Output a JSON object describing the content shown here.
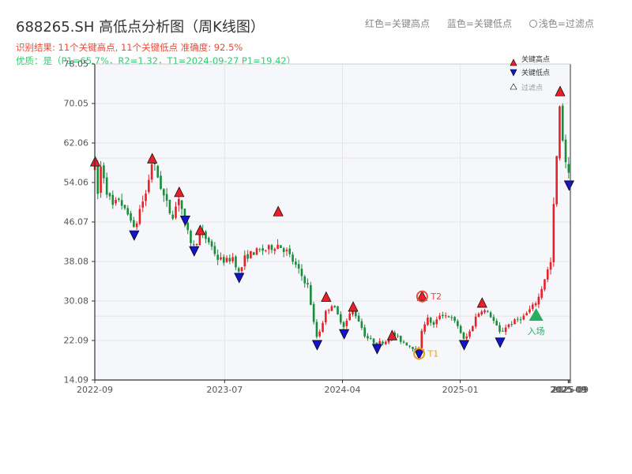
{
  "title": "688265.SH 高低点分析图（周K线图）",
  "legend_top": {
    "red": "红色=关键高点",
    "blue": "蓝色=关键低点",
    "light": "浅色=过滤点"
  },
  "result_line": "识别结果: 11个关键高点, 11个关键低点   准确度: 92.5%",
  "quality_line": "优质：是（P1=65.7%，R2=1.32，T1=2024-09-27 P1=19.42）",
  "legend": {
    "high": "关键高点",
    "low": "关键低点",
    "filtered": "过滤点"
  },
  "annotations": {
    "t1": "T1",
    "t2": "T2",
    "entry": "入场"
  },
  "colors": {
    "up": "#e8202a",
    "down": "#1a8c3c",
    "high_marker": "#e8202a",
    "low_marker": "#1414c8",
    "t1": "#f39c12",
    "t2": "#e74c3c",
    "entry": "#27ae60",
    "axis": "#333333",
    "grid": "#e6e6e6",
    "plot_bg": "#f5f7fa"
  },
  "chart_data": {
    "type": "candlestick",
    "x_ticks": [
      "2022-09",
      "2023-07",
      "2024-04",
      "2025-01",
      "2025-09",
      "2025-09",
      "2025-09"
    ],
    "y_ticks": [
      "14.09",
      "22.09",
      "30.08",
      "38.08",
      "46.07",
      "54.06",
      "62.06",
      "70.05",
      "78.05"
    ],
    "ylim": [
      14.09,
      78.05
    ],
    "xlim": [
      "2022-09-01",
      "2025-09-15"
    ],
    "grid": true,
    "legend_position": "top-right",
    "series_path": [
      [
        "2022-09-02",
        47
      ],
      [
        "2022-09-16",
        58
      ],
      [
        "2022-09-30",
        52
      ],
      [
        "2022-10-14",
        49
      ],
      [
        "2022-10-28",
        51
      ],
      [
        "2022-11-11",
        48
      ],
      [
        "2022-11-25",
        47
      ],
      [
        "2022-12-02",
        44
      ],
      [
        "2022-12-16",
        49
      ],
      [
        "2022-12-30",
        52
      ],
      [
        "2023-01-13",
        58.5
      ],
      [
        "2023-01-27",
        55
      ],
      [
        "2023-02-10",
        51
      ],
      [
        "2023-02-24",
        48
      ],
      [
        "2023-03-03",
        47.5
      ],
      [
        "2023-03-17",
        51.5
      ],
      [
        "2023-03-31",
        45
      ],
      [
        "2023-04-14",
        42
      ],
      [
        "2023-04-21",
        41
      ],
      [
        "2023-05-05",
        44
      ],
      [
        "2023-05-26",
        42
      ],
      [
        "2023-06-16",
        38.5
      ],
      [
        "2023-07-07",
        38.2
      ],
      [
        "2023-07-21",
        39
      ],
      [
        "2023-08-04",
        35.5
      ],
      [
        "2023-08-18",
        39
      ],
      [
        "2023-09-08",
        40
      ],
      [
        "2023-10-06",
        40.5
      ],
      [
        "2023-11-03",
        41.5
      ],
      [
        "2023-11-24",
        40
      ],
      [
        "2023-12-15",
        37
      ],
      [
        "2024-01-12",
        33
      ],
      [
        "2024-01-26",
        25
      ],
      [
        "2024-02-02",
        22.5
      ],
      [
        "2024-02-23",
        28
      ],
      [
        "2024-03-08",
        29.5
      ],
      [
        "2024-03-22",
        27
      ],
      [
        "2024-04-05",
        25
      ],
      [
        "2024-04-19",
        27.5
      ],
      [
        "2024-04-26",
        28.2
      ],
      [
        "2024-05-10",
        26
      ],
      [
        "2024-05-24",
        23
      ],
      [
        "2024-06-07",
        22
      ],
      [
        "2024-06-21",
        21.5
      ],
      [
        "2024-07-12",
        22
      ],
      [
        "2024-07-26",
        23.5
      ],
      [
        "2024-08-16",
        22
      ],
      [
        "2024-09-06",
        21
      ],
      [
        "2024-09-27",
        20
      ],
      [
        "2024-10-04",
        25
      ],
      [
        "2024-10-18",
        26.5
      ],
      [
        "2024-11-01",
        25
      ],
      [
        "2024-11-15",
        27.5
      ],
      [
        "2024-12-06",
        27
      ],
      [
        "2024-12-27",
        25
      ],
      [
        "2025-01-10",
        22
      ],
      [
        "2025-01-24",
        24
      ],
      [
        "2025-02-07",
        27
      ],
      [
        "2025-02-21",
        28.5
      ],
      [
        "2025-03-14",
        27
      ],
      [
        "2025-04-04",
        23.5
      ],
      [
        "2025-04-18",
        25
      ],
      [
        "2025-05-09",
        26
      ],
      [
        "2025-05-30",
        27
      ],
      [
        "2025-06-20",
        29
      ],
      [
        "2025-07-04",
        31
      ],
      [
        "2025-07-18",
        35
      ],
      [
        "2025-08-01",
        38
      ],
      [
        "2025-08-08",
        51
      ],
      [
        "2025-08-22",
        70
      ],
      [
        "2025-08-29",
        62
      ],
      [
        "2025-09-05",
        58
      ],
      [
        "2025-09-12",
        55
      ],
      [
        "2025-09-15",
        57
      ]
    ],
    "key_highs": [
      [
        "2022-09-02",
        58.2
      ],
      [
        "2023-01-13",
        58.8
      ],
      [
        "2023-03-17",
        52.0
      ],
      [
        "2023-05-05",
        44.3
      ],
      [
        "2023-11-03",
        48.1
      ],
      [
        "2024-02-23",
        30.8
      ],
      [
        "2024-04-26",
        28.8
      ],
      [
        "2024-07-26",
        23.0
      ],
      [
        "2025-02-21",
        29.6
      ],
      [
        "2025-08-22",
        72.4
      ],
      [
        "2024-10-04",
        31.0
      ]
    ],
    "key_lows": [
      [
        "2022-12-02",
        43.5
      ],
      [
        "2023-03-31",
        46.5
      ],
      [
        "2023-04-21",
        40.3
      ],
      [
        "2023-08-04",
        34.9
      ],
      [
        "2024-02-02",
        21.3
      ],
      [
        "2024-04-05",
        23.5
      ],
      [
        "2024-06-21",
        20.5
      ],
      [
        "2025-01-10",
        21.3
      ],
      [
        "2025-04-04",
        21.8
      ],
      [
        "2025-09-12",
        53.6
      ],
      [
        "2024-09-27",
        19.4
      ]
    ],
    "t1": [
      "2024-09-27",
      19.42
    ],
    "t2": [
      "2024-10-04",
      31.0
    ],
    "entry": [
      "2025-06-27",
      27.2
    ]
  }
}
